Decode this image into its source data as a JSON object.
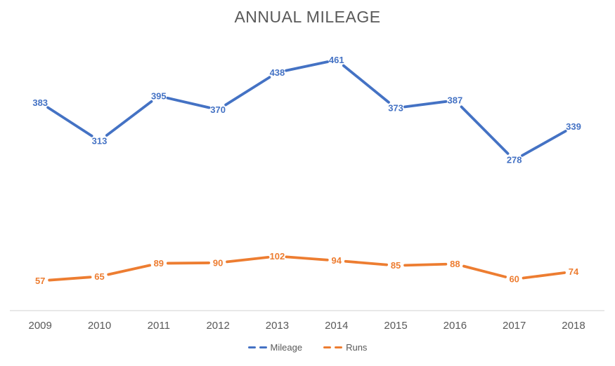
{
  "chart_data": {
    "type": "line",
    "title": "ANNUAL MILEAGE",
    "categories": [
      "2009",
      "2010",
      "2011",
      "2012",
      "2013",
      "2014",
      "2015",
      "2016",
      "2017",
      "2018"
    ],
    "series": [
      {
        "name": "Mileage",
        "color": "#4472C4",
        "values": [
          383,
          313,
          395,
          370,
          438,
          461,
          373,
          387,
          278,
          339
        ]
      },
      {
        "name": "Runs",
        "color": "#ED7D31",
        "values": [
          57,
          65,
          89,
          90,
          102,
          94,
          85,
          88,
          60,
          74
        ]
      }
    ],
    "ylim": [
      0,
      500
    ],
    "grid": "off",
    "y_axis": "hidden",
    "legend_position": "bottom",
    "line_style": "dashed",
    "data_label_position": "center",
    "axis_line_color": "#D9D9D9",
    "text_color": "#595959"
  }
}
